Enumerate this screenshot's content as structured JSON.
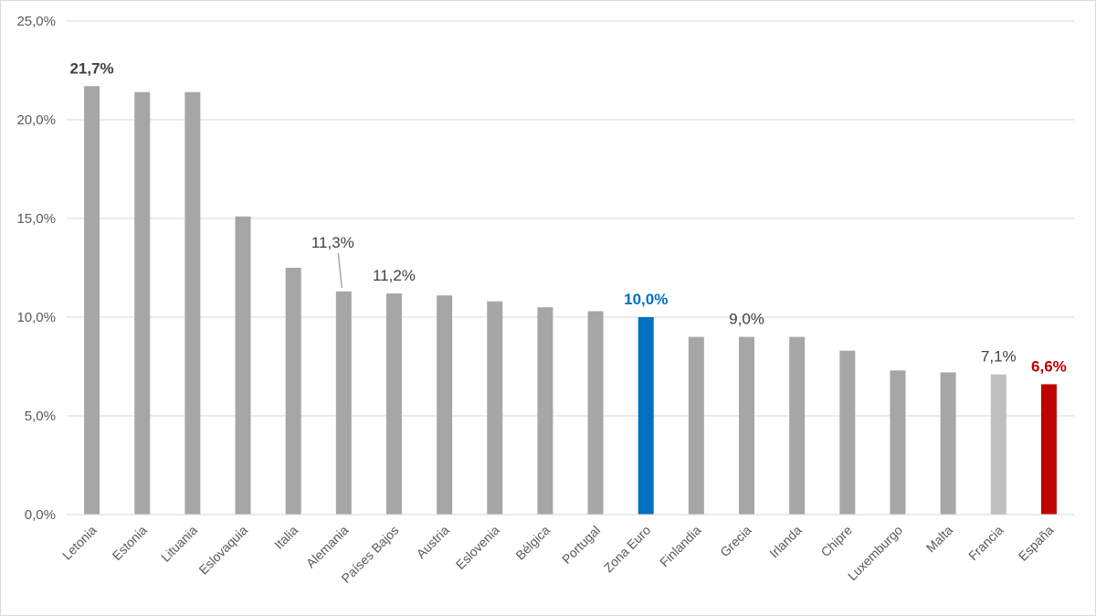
{
  "chart_data": {
    "type": "bar",
    "categories": [
      "Letonia",
      "Estonia",
      "Lituania",
      "Eslovaquia",
      "Italia",
      "Alemania",
      "Países Bajos",
      "Austria",
      "Eslovenia",
      "Bélgica",
      "Portugal",
      "Zona Euro",
      "Finlandia",
      "Grecia",
      "Irlanda",
      "Chipre",
      "Luxemburgo",
      "Malta",
      "Francia",
      "España"
    ],
    "values": [
      21.7,
      21.4,
      21.4,
      15.1,
      12.5,
      11.3,
      11.2,
      11.1,
      10.8,
      10.5,
      10.3,
      10.0,
      9.0,
      9.0,
      9.0,
      8.3,
      7.3,
      7.2,
      7.1,
      6.6
    ],
    "bar_colors": [
      "#a6a6a6",
      "#a6a6a6",
      "#a6a6a6",
      "#a6a6a6",
      "#a6a6a6",
      "#a6a6a6",
      "#a6a6a6",
      "#a6a6a6",
      "#a6a6a6",
      "#a6a6a6",
      "#a6a6a6",
      "#0070c0",
      "#a6a6a6",
      "#a6a6a6",
      "#a6a6a6",
      "#a6a6a6",
      "#a6a6a6",
      "#a6a6a6",
      "#bfbfbf",
      "#c00000"
    ],
    "data_labels": [
      {
        "index": 0,
        "text": "21,7%",
        "bold": true,
        "color": "#404040"
      },
      {
        "index": 5,
        "text": "11,3%",
        "bold": false,
        "color": "#404040",
        "leader_line": true
      },
      {
        "index": 6,
        "text": "11,2%",
        "bold": false,
        "color": "#404040"
      },
      {
        "index": 11,
        "text": "10,0%",
        "bold": true,
        "color": "#0070c0"
      },
      {
        "index": 13,
        "text": "9,0%",
        "bold": false,
        "color": "#404040"
      },
      {
        "index": 18,
        "text": "7,1%",
        "bold": false,
        "color": "#404040"
      },
      {
        "index": 19,
        "text": "6,6%",
        "bold": true,
        "color": "#c00000"
      }
    ],
    "y_ticks": [
      "0,0%",
      "5,0%",
      "10,0%",
      "15,0%",
      "20,0%",
      "25,0%"
    ],
    "ylim": [
      0,
      25
    ],
    "grid": true,
    "legend": "none"
  }
}
